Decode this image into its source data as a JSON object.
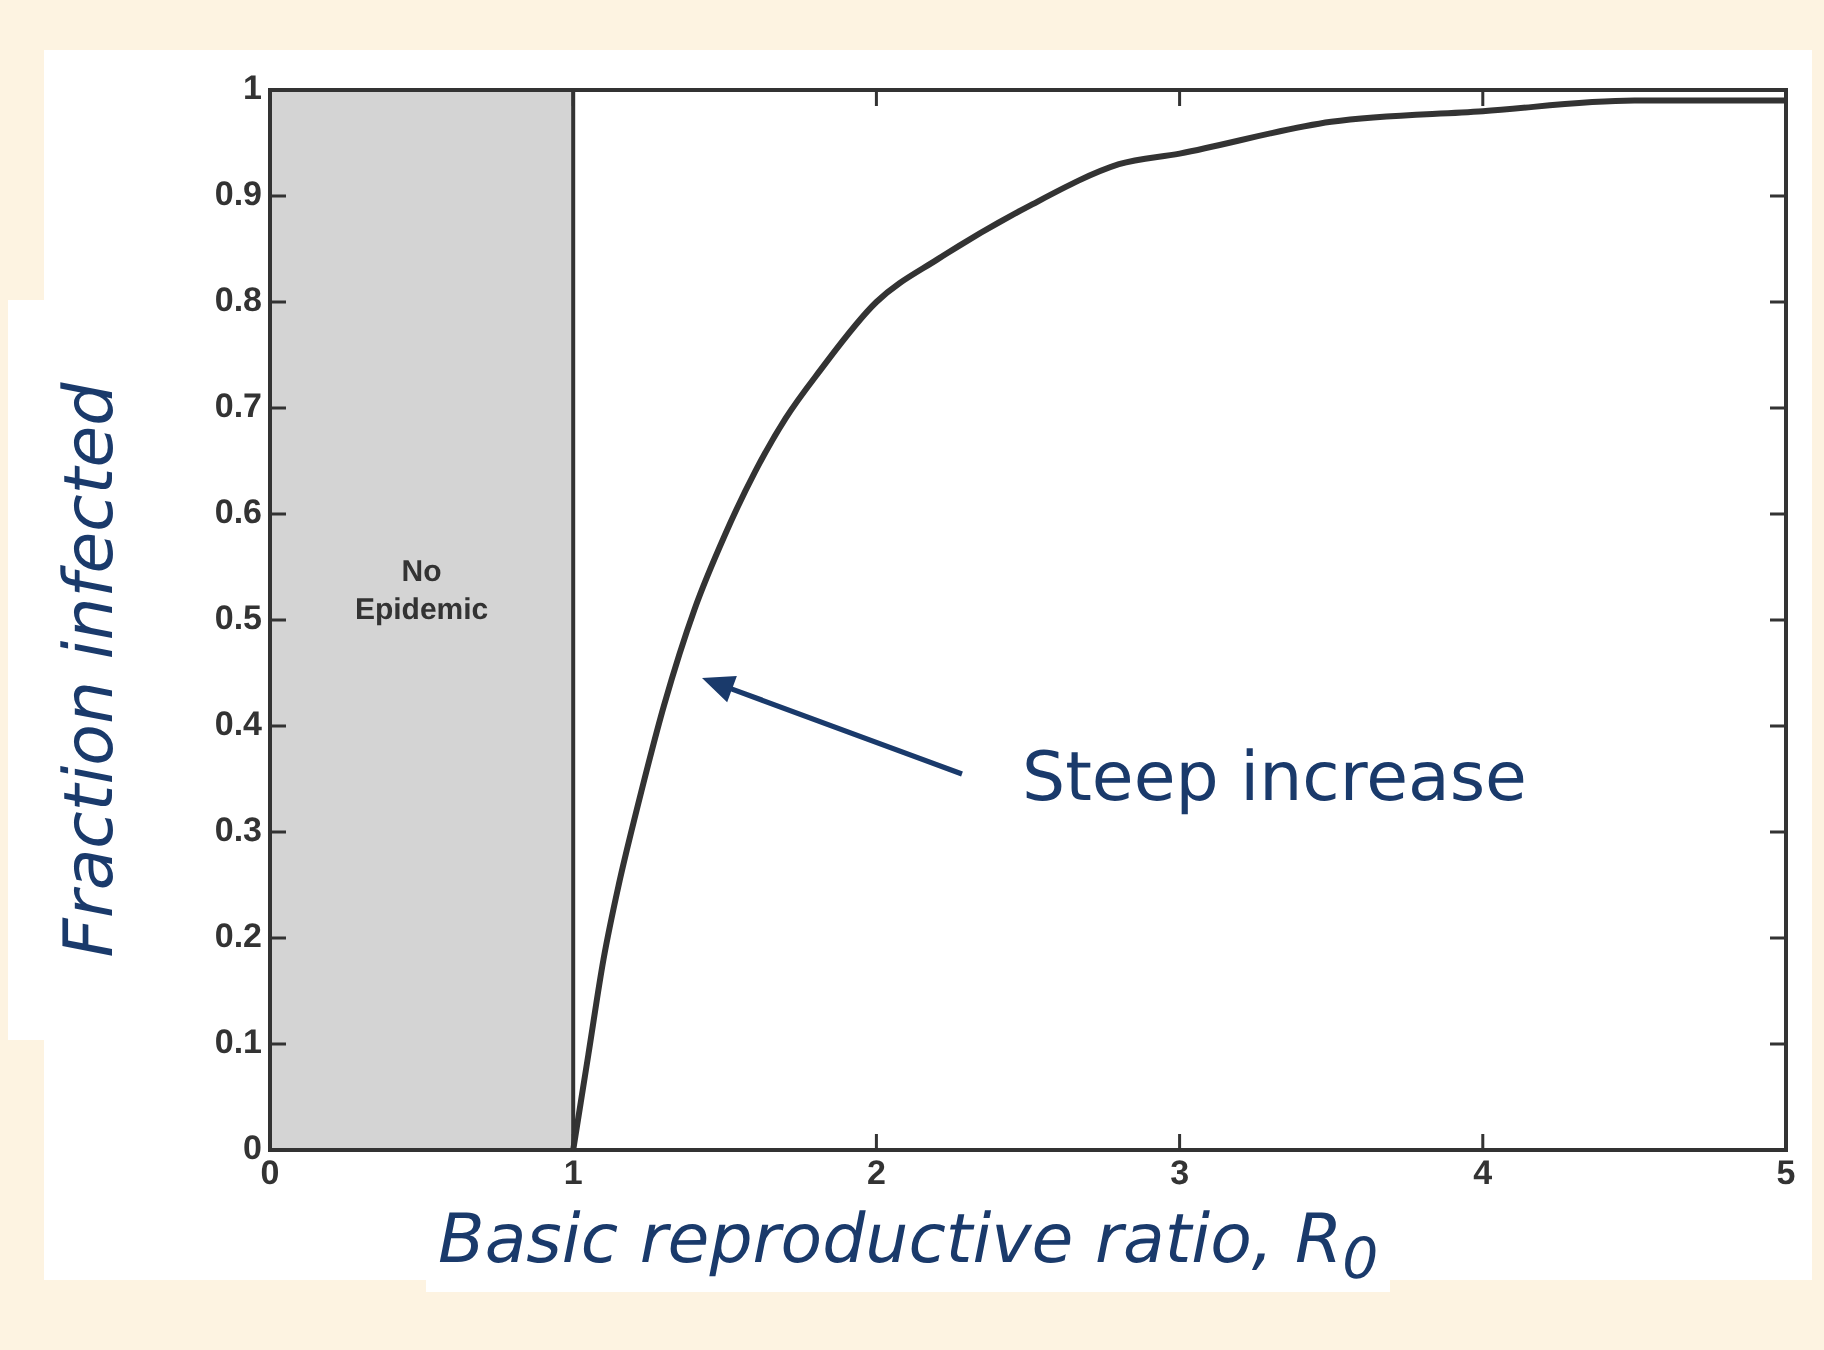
{
  "chart_data": {
    "type": "line",
    "xlabel": "Basic reproductive ratio, R$_{0}$",
    "ylabel": "Fraction infected",
    "x": [
      1,
      1.05,
      1.1,
      1.15,
      1.2,
      1.3,
      1.4,
      1.5,
      1.6,
      1.7,
      1.8,
      2,
      2.2,
      2.5,
      2.8,
      3,
      3.5,
      4,
      4.5,
      5
    ],
    "values": [
      0,
      0.09,
      0.18,
      0.25,
      0.31,
      0.42,
      0.51,
      0.58,
      0.64,
      0.69,
      0.73,
      0.8,
      0.84,
      0.89,
      0.93,
      0.94,
      0.97,
      0.98,
      0.99,
      0.99
    ],
    "color": "#333333",
    "xlim": [
      0,
      5
    ],
    "ylim": [
      0,
      1
    ],
    "xticks": [
      0,
      1,
      2,
      3,
      4,
      5
    ],
    "yticks": [
      0,
      0.1,
      0.2,
      0.3,
      0.4,
      0.5,
      0.6,
      0.7,
      0.8,
      0.9,
      1
    ],
    "grid": false,
    "legend": false,
    "marker": "none",
    "line_style": "solid",
    "bands": [
      {
        "axis": "x",
        "from": 0,
        "to": 1,
        "label": "No Epidemic",
        "color": "#d4d4d4"
      }
    ],
    "annotations": [
      "Steep increase"
    ]
  }
}
